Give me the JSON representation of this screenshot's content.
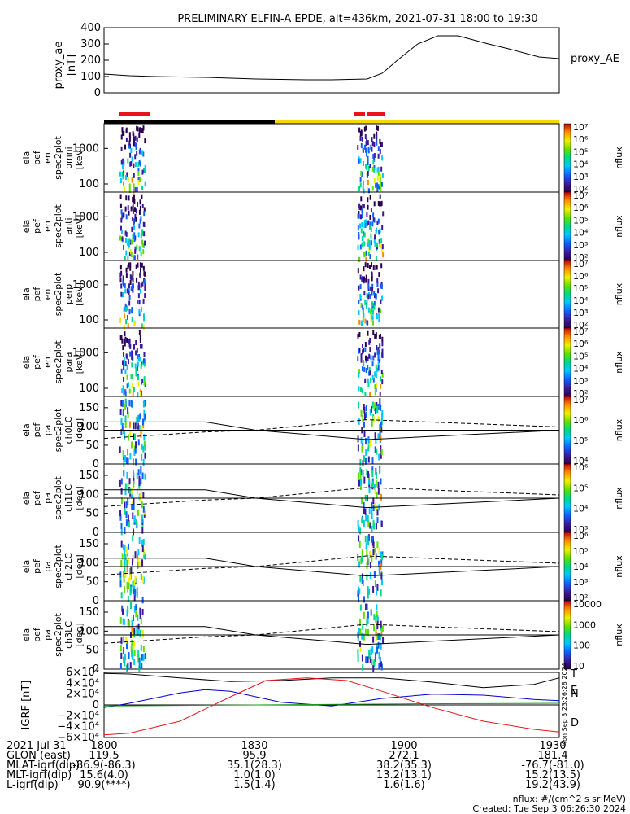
{
  "title": "PRELIMINARY ELFIN-A EPDE, alt=436km, 2021-07-31 18:00 to 19:30",
  "colors": {
    "ae_line": "#000000",
    "bar_red": "#e8131c",
    "bar_black": "#000000",
    "bar_yellow": "#f5d800",
    "grf_n": "#0000cc",
    "grf_e": "#1a9a1a",
    "grf_d": "#e8131c"
  },
  "chart_data": [
    {
      "type": "line",
      "name_label": "proxy_AE",
      "ylabel": "proxy_ae [nT]",
      "ylim": [
        0,
        400
      ],
      "yticks": [
        "0",
        "100",
        "200",
        "300",
        "400"
      ],
      "x_minutes": [
        0,
        5,
        10,
        20,
        30,
        40,
        45,
        52,
        55,
        58,
        62,
        66,
        70,
        76,
        80,
        86,
        90
      ],
      "values": [
        115,
        105,
        100,
        95,
        85,
        80,
        80,
        85,
        120,
        200,
        300,
        350,
        350,
        300,
        270,
        220,
        210
      ]
    },
    {
      "type": "heatmap",
      "panels": [
        {
          "ylabel": [
            "ela",
            "pef",
            "en",
            "spec2plot",
            "omni",
            "[keV]"
          ],
          "yticks": [
            "100",
            "1000"
          ],
          "cbar_label": "nflux",
          "cbar_ticks": [
            "10²",
            "10³",
            "10⁴",
            "10⁵",
            "10⁶",
            "10⁷"
          ]
        },
        {
          "ylabel": [
            "ela",
            "pef",
            "en",
            "spec2plot",
            "anti",
            "[keV]"
          ],
          "yticks": [
            "100",
            "1000"
          ],
          "cbar_label": "nflux",
          "cbar_ticks": [
            "10²",
            "10³",
            "10⁴",
            "10⁵",
            "10⁶",
            "10⁷"
          ]
        },
        {
          "ylabel": [
            "ela",
            "pef",
            "en",
            "spec2plot",
            "perp",
            "[keV]"
          ],
          "yticks": [
            "100",
            "1000"
          ],
          "cbar_label": "nflux",
          "cbar_ticks": [
            "10²",
            "10³",
            "10⁴",
            "10⁵",
            "10⁶",
            "10⁷"
          ]
        },
        {
          "ylabel": [
            "ela",
            "pef",
            "en",
            "spec2plot",
            "para",
            "[keV]"
          ],
          "yticks": [
            "100",
            "1000"
          ],
          "cbar_label": "nflux",
          "cbar_ticks": [
            "10²",
            "10³",
            "10⁴",
            "10⁵",
            "10⁶",
            "10⁷"
          ]
        },
        {
          "ylabel": [
            "ela",
            "pef",
            "pa",
            "spec2plot",
            "ch0LC",
            "[deg]"
          ],
          "yticks": [
            "0",
            "50",
            "100",
            "150"
          ],
          "cbar_label": "nflux",
          "cbar_ticks": [
            "10⁴",
            "10⁵",
            "10⁶",
            "10⁷"
          ]
        },
        {
          "ylabel": [
            "ela",
            "pef",
            "pa",
            "spec2plot",
            "ch1LC",
            "[deg]"
          ],
          "yticks": [
            "0",
            "50",
            "100",
            "150"
          ],
          "cbar_label": "nflux",
          "cbar_ticks": [
            "10³",
            "10⁴",
            "10⁵",
            "10⁶"
          ]
        },
        {
          "ylabel": [
            "ela",
            "pef",
            "pa",
            "spec2plot",
            "ch2LC",
            "[deg]"
          ],
          "yticks": [
            "0",
            "50",
            "100",
            "150"
          ],
          "cbar_label": "nflux",
          "cbar_ticks": [
            "10²",
            "10³",
            "10⁴",
            "10⁵",
            "10⁶"
          ]
        },
        {
          "ylabel": [
            "ela",
            "pef",
            "pa",
            "spec2plot",
            "ch3LC",
            "[deg]"
          ],
          "yticks": [
            "0",
            "50",
            "100",
            "150"
          ],
          "cbar_label": "nflux",
          "cbar_ticks": [
            "10",
            "100",
            "1000",
            "10000"
          ]
        }
      ],
      "bursts_minutes": [
        [
          3,
          8
        ],
        [
          50,
          55
        ]
      ]
    },
    {
      "type": "line",
      "ylabel": "IGRF [nT]",
      "ylim": [
        -60000,
        60000
      ],
      "yticks": [
        "6×10⁴",
        "4×10⁴",
        "2×10⁴",
        "0",
        "−2×10⁴",
        "−4×10⁴",
        "−6×10⁴"
      ],
      "series": [
        {
          "name": "T",
          "x_minutes": [
            0,
            5,
            15,
            25,
            35,
            45,
            55,
            65,
            75,
            85,
            90
          ],
          "values": [
            58000,
            57000,
            50000,
            43000,
            45000,
            50000,
            50000,
            42000,
            32000,
            38000,
            50000
          ]
        },
        {
          "name": "N",
          "x_minutes": [
            0,
            5,
            15,
            20,
            25,
            35,
            45,
            55,
            65,
            75,
            85,
            90
          ],
          "values": [
            -5000,
            3000,
            22000,
            28000,
            25000,
            5000,
            -2000,
            12000,
            20000,
            18000,
            10000,
            8000
          ]
        },
        {
          "name": "E",
          "x_minutes": [
            0,
            30,
            60,
            90
          ],
          "values": [
            -2000,
            0,
            2000,
            3000
          ]
        },
        {
          "name": "D",
          "x_minutes": [
            0,
            5,
            15,
            25,
            32,
            40,
            48,
            55,
            65,
            75,
            85,
            90
          ],
          "values": [
            -55000,
            -52000,
            -30000,
            15000,
            45000,
            50000,
            45000,
            25000,
            -5000,
            -30000,
            -45000,
            -50000
          ]
        }
      ],
      "side_label": "Mon Sep  3 23:26:28 2024"
    }
  ],
  "footer": {
    "rows": [
      {
        "label": "2021 Jul 31",
        "values": [
          "1800",
          "1830",
          "1900",
          "1930"
        ]
      },
      {
        "label": "GLON (east)",
        "values": [
          "119.5",
          "95.9",
          "272.1",
          "181.4"
        ]
      },
      {
        "label": "MLAT-igrf(dip)",
        "values": "-86.9(-86.3)",
        "v2": "35.1(28.3)",
        "v3": "38.2(35.3)",
        "v4": "-76.7(-81.0)"
      },
      {
        "label": "MLT-igrf(dip)",
        "values": "15.6(4.0)",
        "v2": "1.0(1.0)",
        "v3": "13.2(13.1)",
        "v4": "15.2(13.5)"
      },
      {
        "label": "L-igrf(dip)",
        "values": "90.9(****)",
        "v2": "1.5(1.4)",
        "v3": "1.6(1.6)",
        "v4": "19.2(43.9)"
      }
    ],
    "units": "nflux: #/(cm^2 s sr MeV)",
    "created": "Created: Tue Sep  3 06:26:30 2024"
  }
}
